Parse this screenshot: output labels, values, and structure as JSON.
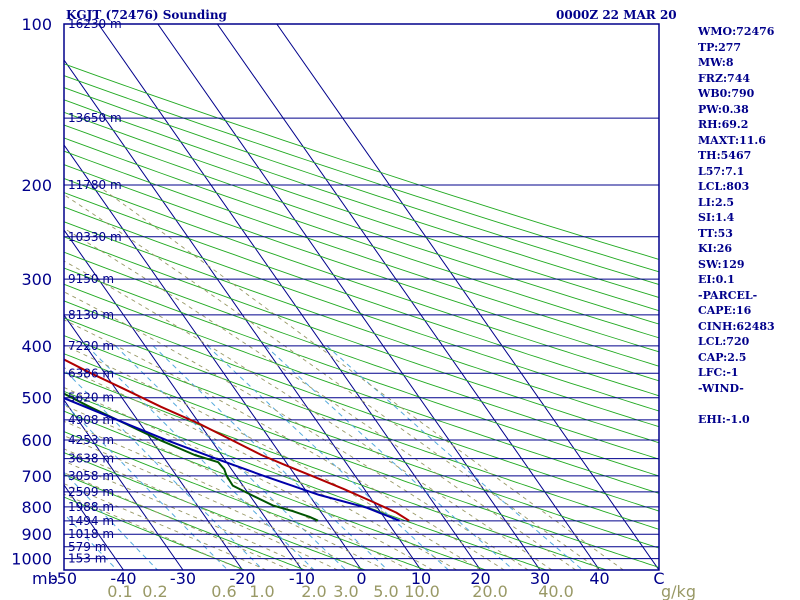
{
  "header": {
    "station": "KGJT (72476) Sounding",
    "time": "0000Z 22 MAR 20"
  },
  "indices": [
    "WMO:72476",
    "TP:277",
    "MW:8",
    "FRZ:744",
    "WB0:790",
    "PW:0.38",
    "RH:69.2",
    "MAXT:11.6",
    "TH:5467",
    "L57:7.1",
    "LCL:803",
    "LI:2.5",
    "SI:1.4",
    "TT:53",
    "KI:26",
    "SW:129",
    "EI:0.1",
    "-PARCEL-",
    "CAPE:16",
    "CINH:62483",
    "LCL:720",
    "CAP:2.5",
    "LFC:-1",
    "-WIND-",
    "",
    "EHI:-1.0"
  ],
  "colors": {
    "frame": "#00008b",
    "isobar": "#00008b",
    "isotherm": "#00008b",
    "dry_adiabat": "#22aa22",
    "moist_adiabat": "#999966",
    "mixing_ratio": "#55aadd",
    "temperature": "#b00000",
    "dewpoint": "#005500",
    "parcel": "#0000aa",
    "label": "#00008b",
    "mixing_label": "#999966"
  },
  "chart_data": {
    "type": "line",
    "title": "KGJT (72476) Sounding",
    "xlabel": "",
    "ylabel": "mb",
    "x_ticks": [
      "-50",
      "-40",
      "-30",
      "-20",
      "-10",
      "0",
      "10",
      "20",
      "30",
      "40",
      "C"
    ],
    "y_ticks": [
      "100",
      "200",
      "300",
      "400",
      "500",
      "600",
      "700",
      "800",
      "900",
      "1000"
    ],
    "mixing_ratio_ticks": [
      "0.1",
      "0.2",
      "0.6",
      "1.0",
      "2.0",
      "3.0",
      "5.0",
      "10.0",
      "20.0",
      "40.0",
      "g/kg"
    ],
    "height_labels": [
      {
        "p": 100,
        "label": "16230 m"
      },
      {
        "p": 150,
        "label": "13650 m"
      },
      {
        "p": 200,
        "label": "11780 m"
      },
      {
        "p": 250,
        "label": "10330 m"
      },
      {
        "p": 300,
        "label": "9150 m"
      },
      {
        "p": 350,
        "label": "8130 m"
      },
      {
        "p": 400,
        "label": "7220 m"
      },
      {
        "p": 450,
        "label": "6386 m"
      },
      {
        "p": 500,
        "label": "5620 m"
      },
      {
        "p": 550,
        "label": "4908 m"
      },
      {
        "p": 600,
        "label": "4253 m"
      },
      {
        "p": 650,
        "label": "3638 m"
      },
      {
        "p": 700,
        "label": "3058 m"
      },
      {
        "p": 750,
        "label": "2509 m"
      },
      {
        "p": 800,
        "label": "1988 m"
      },
      {
        "p": 850,
        "label": "1494 m"
      },
      {
        "p": 900,
        "label": "1018 m"
      },
      {
        "p": 950,
        "label": "579 m"
      },
      {
        "p": 1000,
        "label": "153 m"
      }
    ],
    "ylim": [
      100,
      1050
    ],
    "xlim": [
      -50,
      50
    ],
    "y_scale": "log",
    "skew": true,
    "series": [
      {
        "name": "temperature",
        "points": [
          [
            849,
            13.8
          ],
          [
            820,
            12.6
          ],
          [
            780,
            9.7
          ],
          [
            740,
            6.5
          ],
          [
            700,
            2.7
          ],
          [
            670,
            -0.3
          ],
          [
            640,
            -3.3
          ],
          [
            600,
            -6.5
          ],
          [
            560,
            -10
          ],
          [
            520,
            -14.5
          ],
          [
            480,
            -18.8
          ],
          [
            450,
            -22.3
          ],
          [
            420,
            -25.7
          ],
          [
            390,
            -29.7
          ],
          [
            360,
            -34.4
          ],
          [
            330,
            -40
          ],
          [
            310,
            -44.6
          ],
          [
            300,
            -47.4
          ],
          [
            290,
            -47.4
          ],
          [
            275,
            -46.3
          ],
          [
            260,
            -46.2
          ],
          [
            245,
            -47.6
          ],
          [
            230,
            -47.3
          ],
          [
            222,
            -46.1
          ],
          [
            214,
            -44.2
          ],
          [
            205,
            -45.1
          ],
          [
            195,
            -47.1
          ],
          [
            185,
            -48.9
          ],
          [
            175,
            -51.7
          ],
          [
            165,
            -53.4
          ],
          [
            155,
            -56.7
          ],
          [
            145,
            -60.2
          ],
          [
            138,
            -63.3
          ],
          [
            130,
            -66.1
          ],
          [
            125,
            -67.5
          ],
          [
            120,
            -70.8
          ],
          [
            115,
            -73.1
          ],
          [
            110,
            -75.4
          ],
          [
            105,
            -77.7
          ],
          [
            100,
            -79.6
          ]
        ]
      },
      {
        "name": "dewpoint",
        "points": [
          [
            849,
            -1.5
          ],
          [
            835,
            -2.5
          ],
          [
            815,
            -4.6
          ],
          [
            795,
            -7.3
          ],
          [
            760,
            -9.7
          ],
          [
            730,
            -11.7
          ],
          [
            700,
            -11.6
          ],
          [
            680,
            -11.2
          ],
          [
            660,
            -11.4
          ],
          [
            640,
            -14.5
          ],
          [
            600,
            -18.6
          ],
          [
            560,
            -22.4
          ],
          [
            520,
            -26.5
          ],
          [
            490,
            -29.4
          ],
          [
            465,
            -32.8
          ],
          [
            450,
            -35.6
          ],
          [
            420,
            -40.7
          ],
          [
            400,
            -45.2
          ],
          [
            375,
            -49
          ],
          [
            350,
            -51.2
          ],
          [
            320,
            -51.8
          ],
          [
            300,
            -52.2
          ],
          [
            290,
            -82.4
          ],
          [
            280,
            -90.6
          ],
          [
            270,
            -88.8
          ],
          [
            255,
            -84.8
          ],
          [
            240,
            -80.1
          ],
          [
            225,
            -76.2
          ],
          [
            215,
            -76.8
          ],
          [
            205,
            -77.2
          ],
          [
            195,
            -78.3
          ],
          [
            185,
            -80.3
          ],
          [
            175,
            -82.4
          ],
          [
            165,
            -82.8
          ],
          [
            155,
            -84.9
          ],
          [
            145,
            -88
          ],
          [
            135,
            -90.6
          ],
          [
            125,
            -92.9
          ],
          [
            118,
            -97.6
          ],
          [
            110,
            -98.9
          ],
          [
            104,
            -102.8
          ],
          [
            100,
            -105.6
          ]
        ]
      },
      {
        "name": "parcel",
        "points": [
          [
            849,
            12.2
          ],
          [
            803,
            8.2
          ],
          [
            760,
            1.7
          ],
          [
            700,
            -5.4
          ],
          [
            650,
            -11.4
          ],
          [
            600,
            -17.5
          ],
          [
            550,
            -23.4
          ],
          [
            500,
            -29.9
          ],
          [
            450,
            -37.2
          ],
          [
            400,
            -45.1
          ],
          [
            350,
            -53.6
          ],
          [
            300,
            -62.5
          ],
          [
            250,
            -71.9
          ],
          [
            200,
            -81.7
          ],
          [
            150,
            -92.7
          ],
          [
            120,
            -101.1
          ],
          [
            100,
            -107.5
          ]
        ]
      }
    ],
    "grid": true,
    "legend": "none"
  }
}
